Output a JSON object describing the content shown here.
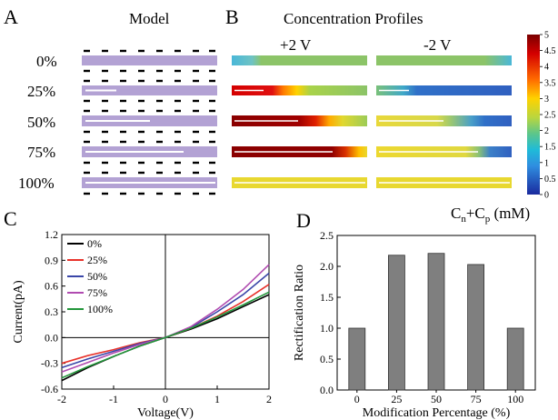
{
  "panels": {
    "a": {
      "letter": "A",
      "title": "Model"
    },
    "b": {
      "letter": "B",
      "title": "Concentration Profiles",
      "cond_plus": "+2 V",
      "cond_minus": "-2 V"
    },
    "c": {
      "letter": "C"
    },
    "d": {
      "letter": "D"
    }
  },
  "rows": [
    "0%",
    "25%",
    "50%",
    "75%",
    "100%"
  ],
  "colorbar": {
    "ticks": [
      "5",
      "4.5",
      "4",
      "3.5",
      "3",
      "2.5",
      "2",
      "1.5",
      "1",
      "0.5",
      "0"
    ],
    "label_main": "C",
    "label_sub1": "n",
    "label_mid": "+C",
    "label_sub2": "p",
    "label_unit": " (mM)"
  },
  "colors": {
    "model_fill": "#b3a2d4",
    "bar_fill": "#7f7f7f",
    "series": [
      "#000000",
      "#e8322b",
      "#3a46a8",
      "#b04bb0",
      "#22963a"
    ]
  },
  "chart_data": [
    {
      "type": "line",
      "xlabel": "Voltage(V)",
      "ylabel": "Current(pA)",
      "xlim": [
        -2,
        2
      ],
      "ylim": [
        -0.6,
        1.2
      ],
      "xticks": [
        -2,
        -1,
        0,
        1,
        2
      ],
      "yticks": [
        -0.6,
        -0.3,
        0.0,
        0.3,
        0.6,
        0.9,
        1.2
      ],
      "xtick_labels": [
        "-2",
        "-1",
        "0",
        "1",
        "2"
      ],
      "ytick_labels": [
        "-0.6",
        "-0.3",
        "0.0",
        "0.3",
        "0.6",
        "0.9",
        "1.2"
      ],
      "legend_position": "top-left",
      "x": [
        -2,
        -1.5,
        -1,
        -0.5,
        0,
        0.5,
        1,
        1.5,
        2
      ],
      "series": [
        {
          "name": "0%",
          "y": [
            -0.5,
            -0.35,
            -0.22,
            -0.1,
            0.0,
            0.1,
            0.22,
            0.36,
            0.5
          ]
        },
        {
          "name": "25%",
          "y": [
            -0.3,
            -0.21,
            -0.14,
            -0.06,
            0.0,
            0.11,
            0.25,
            0.42,
            0.62
          ]
        },
        {
          "name": "50%",
          "y": [
            -0.35,
            -0.25,
            -0.16,
            -0.07,
            0.0,
            0.12,
            0.3,
            0.5,
            0.75
          ]
        },
        {
          "name": "75%",
          "y": [
            -0.4,
            -0.29,
            -0.18,
            -0.08,
            0.0,
            0.13,
            0.33,
            0.56,
            0.85
          ]
        },
        {
          "name": "100%",
          "y": [
            -0.47,
            -0.34,
            -0.22,
            -0.1,
            0.0,
            0.11,
            0.24,
            0.38,
            0.53
          ]
        }
      ]
    },
    {
      "type": "bar",
      "xlabel": "Modification Percentage (%)",
      "ylabel": "Rectification Ratio",
      "categories": [
        "0",
        "25",
        "50",
        "75",
        "100"
      ],
      "values": [
        1.0,
        2.18,
        2.21,
        2.03,
        1.0
      ],
      "ylim": [
        0,
        2.5
      ],
      "yticks": [
        0,
        0.5,
        1.0,
        1.5,
        2.0,
        2.5
      ],
      "ytick_labels": [
        "0.0",
        "0.5",
        "1.0",
        "1.5",
        "2.0",
        "2.5"
      ]
    }
  ]
}
